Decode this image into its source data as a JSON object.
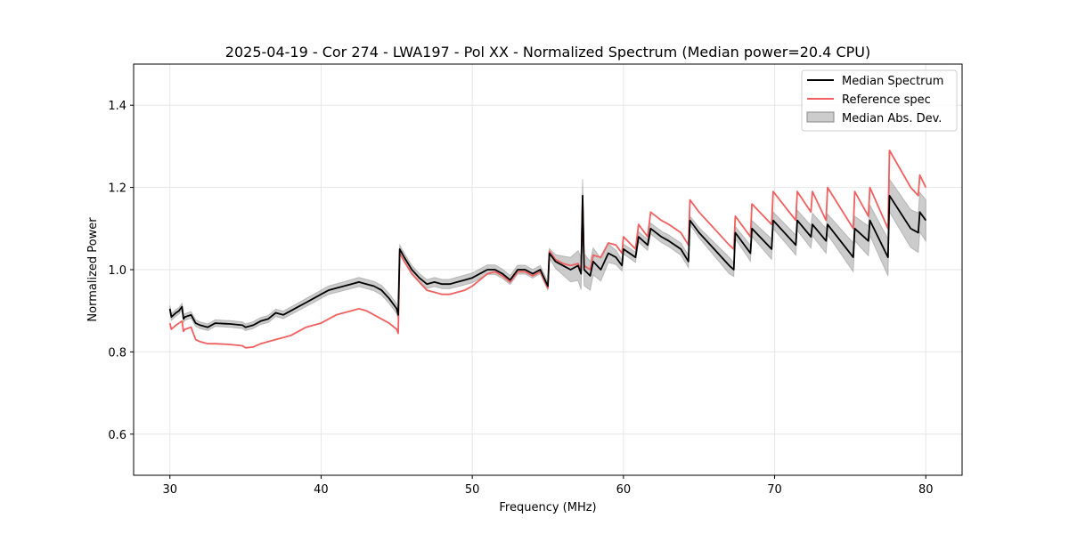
{
  "chart_data": {
    "type": "line",
    "title": "2025-04-19 - Cor 274 - LWA197 - Pol XX - Normalized Spectrum (Median power=20.4 CPU)",
    "xlabel": "Frequency (MHz)",
    "ylabel": "Normalized Power",
    "xlim": [
      27.6,
      82.4
    ],
    "ylim": [
      0.5,
      1.5
    ],
    "xticks": [
      30,
      40,
      50,
      60,
      70,
      80
    ],
    "yticks": [
      0.6,
      0.8,
      1.0,
      1.2,
      1.4
    ],
    "xtick_labels": [
      "30",
      "40",
      "50",
      "60",
      "70",
      "80"
    ],
    "ytick_labels": [
      "0.6",
      "0.8",
      "1.0",
      "1.2",
      "1.4"
    ],
    "grid": true,
    "legend_position": "top-right",
    "series": [
      {
        "name": "Median Spectrum",
        "color": "#000000",
        "x": [
          30.0,
          30.1,
          30.4,
          30.6,
          30.8,
          30.9,
          31.0,
          31.4,
          31.7,
          32.0,
          32.5,
          33.0,
          34.0,
          34.8,
          35.0,
          35.5,
          36.0,
          36.5,
          37.0,
          37.5,
          38.0,
          38.5,
          39.0,
          39.5,
          40.0,
          40.5,
          41.0,
          41.5,
          42.0,
          42.5,
          43.0,
          43.5,
          44.0,
          44.5,
          45.0,
          45.1,
          45.2,
          45.5,
          46.0,
          46.5,
          47.0,
          47.5,
          48.0,
          48.5,
          49.0,
          49.5,
          50.0,
          50.5,
          51.0,
          51.5,
          52.0,
          52.5,
          53.0,
          53.5,
          54.0,
          54.5,
          55.0,
          55.1,
          55.5,
          56.0,
          56.5,
          57.0,
          57.2,
          57.3,
          57.4,
          57.8,
          58.0,
          58.5,
          59.0,
          59.5,
          59.9,
          60.0,
          60.8,
          61.0,
          61.6,
          61.8,
          62.5,
          63.0,
          63.8,
          64.3,
          64.4,
          65.0,
          66.0,
          67.0,
          67.3,
          67.4,
          68.4,
          68.5,
          69.8,
          69.9,
          71.4,
          71.5,
          72.4,
          72.5,
          73.4,
          73.5,
          75.2,
          75.3,
          76.2,
          76.3,
          77.5,
          77.6,
          79.0,
          79.5,
          79.6,
          80.0
        ],
        "values": [
          0.905,
          0.885,
          0.895,
          0.9,
          0.91,
          0.88,
          0.885,
          0.89,
          0.87,
          0.865,
          0.86,
          0.87,
          0.868,
          0.865,
          0.86,
          0.865,
          0.875,
          0.88,
          0.895,
          0.89,
          0.9,
          0.91,
          0.92,
          0.93,
          0.94,
          0.95,
          0.955,
          0.96,
          0.965,
          0.97,
          0.965,
          0.96,
          0.95,
          0.93,
          0.905,
          0.89,
          1.05,
          1.03,
          1.0,
          0.98,
          0.965,
          0.97,
          0.965,
          0.965,
          0.97,
          0.975,
          0.98,
          0.99,
          1.0,
          1.0,
          0.99,
          0.975,
          1.0,
          1.0,
          0.99,
          1.0,
          0.96,
          1.04,
          1.02,
          1.01,
          1.0,
          1.01,
          0.99,
          1.18,
          1.0,
          0.985,
          1.02,
          1.0,
          1.04,
          1.03,
          1.01,
          1.05,
          1.03,
          1.08,
          1.06,
          1.1,
          1.08,
          1.07,
          1.05,
          1.02,
          1.12,
          1.09,
          1.05,
          1.01,
          1.0,
          1.09,
          1.04,
          1.1,
          1.05,
          1.12,
          1.06,
          1.12,
          1.08,
          1.11,
          1.07,
          1.11,
          1.03,
          1.1,
          1.07,
          1.12,
          1.03,
          1.18,
          1.1,
          1.09,
          1.14,
          1.12
        ]
      },
      {
        "name": "Reference spec",
        "color": "#f06060",
        "x": [
          30.0,
          30.1,
          30.4,
          30.6,
          30.8,
          30.9,
          31.0,
          31.4,
          31.7,
          32.0,
          32.5,
          33.0,
          34.0,
          34.8,
          35.0,
          35.5,
          36.0,
          36.5,
          37.0,
          37.5,
          38.0,
          38.5,
          39.0,
          39.5,
          40.0,
          40.5,
          41.0,
          41.5,
          42.0,
          42.5,
          43.0,
          43.5,
          44.0,
          44.5,
          45.0,
          45.1,
          45.2,
          45.5,
          46.0,
          46.5,
          47.0,
          47.5,
          48.0,
          48.5,
          49.0,
          49.5,
          50.0,
          50.5,
          51.0,
          51.5,
          52.0,
          52.5,
          53.0,
          53.5,
          54.0,
          54.5,
          55.0,
          55.1,
          55.5,
          56.0,
          56.5,
          57.0,
          57.2,
          57.3,
          57.4,
          57.8,
          58.0,
          58.5,
          59.0,
          59.5,
          59.9,
          60.0,
          60.8,
          61.0,
          61.6,
          61.8,
          62.5,
          63.0,
          63.8,
          64.3,
          64.4,
          65.0,
          66.0,
          67.0,
          67.3,
          67.4,
          68.4,
          68.5,
          69.8,
          69.9,
          71.4,
          71.5,
          72.4,
          72.5,
          73.4,
          73.5,
          75.2,
          75.3,
          76.2,
          76.3,
          77.5,
          77.6,
          79.0,
          79.5,
          79.6,
          80.0
        ],
        "values": [
          0.87,
          0.855,
          0.865,
          0.87,
          0.875,
          0.85,
          0.855,
          0.86,
          0.83,
          0.825,
          0.82,
          0.82,
          0.818,
          0.815,
          0.81,
          0.812,
          0.82,
          0.825,
          0.83,
          0.835,
          0.84,
          0.85,
          0.86,
          0.865,
          0.87,
          0.88,
          0.89,
          0.895,
          0.9,
          0.905,
          0.9,
          0.89,
          0.88,
          0.87,
          0.855,
          0.845,
          1.04,
          1.02,
          0.99,
          0.97,
          0.95,
          0.945,
          0.94,
          0.94,
          0.945,
          0.95,
          0.96,
          0.975,
          0.99,
          0.995,
          0.985,
          0.97,
          0.995,
          0.995,
          0.985,
          0.995,
          0.955,
          1.045,
          1.025,
          1.015,
          1.01,
          1.015,
          1.0,
          1.17,
          1.01,
          1.0,
          1.035,
          1.03,
          1.065,
          1.06,
          1.04,
          1.08,
          1.05,
          1.11,
          1.08,
          1.14,
          1.12,
          1.11,
          1.09,
          1.06,
          1.17,
          1.14,
          1.1,
          1.06,
          1.05,
          1.13,
          1.08,
          1.16,
          1.11,
          1.19,
          1.12,
          1.19,
          1.14,
          1.19,
          1.12,
          1.2,
          1.1,
          1.19,
          1.13,
          1.2,
          1.1,
          1.29,
          1.2,
          1.18,
          1.23,
          1.2
        ]
      }
    ],
    "band": {
      "name": "Median Abs. Dev.",
      "color": "#999999",
      "x": [
        30.0,
        32.0,
        35.0,
        40.0,
        45.0,
        45.2,
        50.0,
        55.0,
        57.3,
        60.0,
        64.3,
        64.4,
        67.0,
        67.4,
        69.8,
        69.9,
        73.4,
        73.5,
        75.2,
        75.3,
        77.5,
        77.6,
        80.0
      ],
      "half_width": [
        0.008,
        0.008,
        0.008,
        0.01,
        0.012,
        0.01,
        0.012,
        0.01,
        0.04,
        0.012,
        0.015,
        0.01,
        0.02,
        0.015,
        0.025,
        0.02,
        0.03,
        0.025,
        0.035,
        0.03,
        0.045,
        0.04,
        0.05
      ]
    }
  }
}
